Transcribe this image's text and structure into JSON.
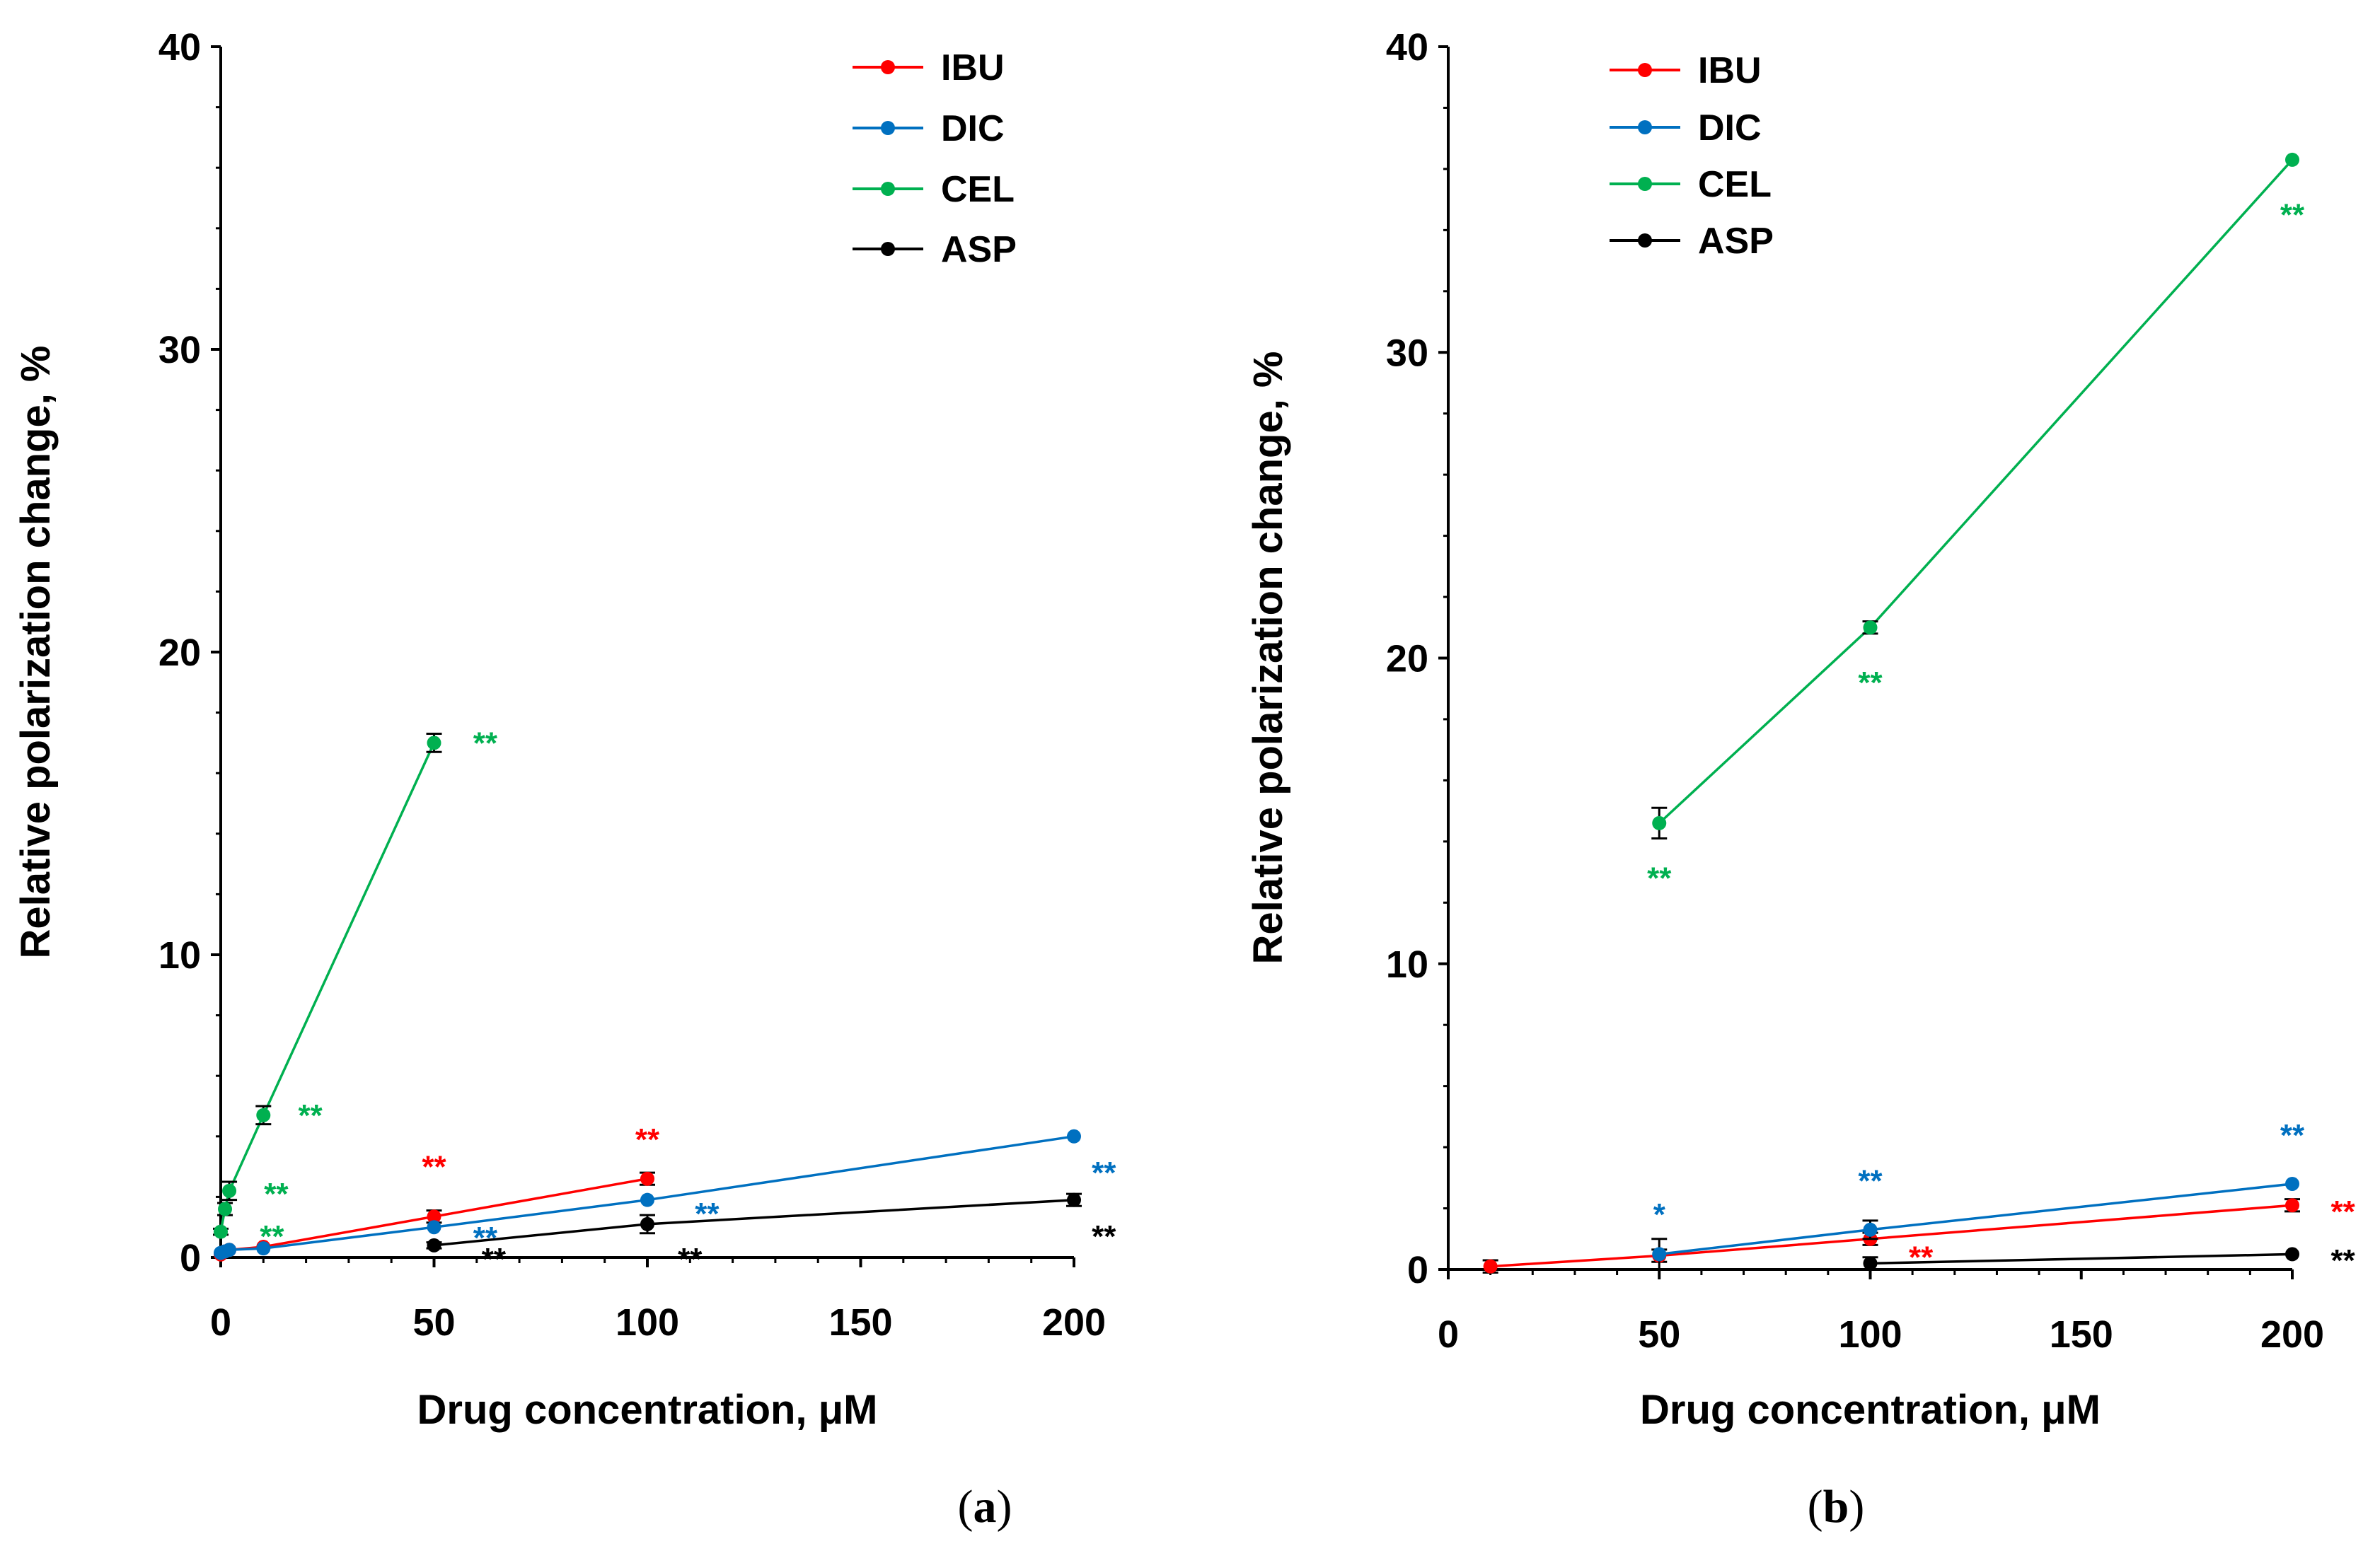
{
  "figure": {
    "panel_labels": [
      "a",
      "b"
    ]
  },
  "series_colors": {
    "IBU": "#ff0000",
    "DIC": "#0070c0",
    "CEL": "#00b050",
    "ASP": "#000000"
  },
  "chart_data": [
    {
      "type": "line",
      "panel": "a",
      "xlabel": "Drug concentration, μM",
      "ylabel": "Relative polarization  change, %",
      "xlim": [
        0,
        200
      ],
      "ylim": [
        0,
        40
      ],
      "xticks": [
        0,
        50,
        100,
        150,
        200
      ],
      "yticks": [
        0,
        10,
        20,
        30,
        40
      ],
      "legend": [
        "IBU",
        "DIC",
        "CEL",
        "ASP"
      ],
      "series": [
        {
          "name": "IBU",
          "color": "#ff0000",
          "x": [
            0,
            1,
            2,
            10,
            50,
            100
          ],
          "y": [
            0.1,
            0.2,
            0.25,
            0.35,
            1.35,
            2.6
          ],
          "err": [
            0,
            0,
            0,
            0,
            0.2,
            0.2
          ]
        },
        {
          "name": "DIC",
          "color": "#0070c0",
          "x": [
            0,
            1,
            2,
            10,
            50,
            100,
            200
          ],
          "y": [
            0.15,
            0.2,
            0.25,
            0.3,
            1.0,
            1.9,
            4.0
          ],
          "err": [
            0,
            0,
            0,
            0,
            0,
            0,
            0
          ]
        },
        {
          "name": "CEL",
          "color": "#00b050",
          "x": [
            0,
            1,
            2,
            10,
            50
          ],
          "y": [
            0.85,
            1.6,
            2.2,
            4.7,
            17.0
          ],
          "err": [
            0.1,
            0.2,
            0.3,
            0.3,
            0.3
          ]
        },
        {
          "name": "ASP",
          "color": "#000000",
          "x": [
            50,
            100,
            200
          ],
          "y": [
            0.4,
            1.1,
            1.9
          ],
          "err": [
            0.1,
            0.3,
            0.2
          ]
        }
      ],
      "annotations": [
        {
          "text": "**",
          "series": "CEL",
          "x": 62,
          "y": 17.0
        },
        {
          "text": "**",
          "series": "CEL",
          "x": 21,
          "y": 4.7
        },
        {
          "text": "**",
          "series": "CEL",
          "x": 13,
          "y": 2.1
        },
        {
          "text": "**",
          "series": "CEL",
          "x": 12,
          "y": 0.7
        },
        {
          "text": "**",
          "series": "IBU",
          "x": 50,
          "y": 3.0
        },
        {
          "text": "**",
          "series": "IBU",
          "x": 100,
          "y": 3.9
        },
        {
          "text": "**",
          "series": "DIC",
          "x": 62,
          "y": 0.65
        },
        {
          "text": "**",
          "series": "DIC",
          "x": 114,
          "y": 1.45
        },
        {
          "text": "**",
          "series": "DIC",
          "x": 207,
          "y": 2.8
        },
        {
          "text": "**",
          "series": "ASP",
          "x": 64,
          "y": -0.05
        },
        {
          "text": "**",
          "series": "ASP",
          "x": 110,
          "y": -0.05
        },
        {
          "text": "**",
          "series": "ASP",
          "x": 207,
          "y": 0.7
        }
      ]
    },
    {
      "type": "line",
      "panel": "b",
      "xlabel": "Drug concentration, μM",
      "ylabel": "Relative polarization  change, %",
      "xlim": [
        0,
        200
      ],
      "ylim": [
        0,
        40
      ],
      "xticks": [
        0,
        50,
        100,
        150,
        200
      ],
      "yticks": [
        0,
        10,
        20,
        30,
        40
      ],
      "legend": [
        "IBU",
        "DIC",
        "CEL",
        "ASP"
      ],
      "series": [
        {
          "name": "IBU",
          "color": "#ff0000",
          "x": [
            10,
            50,
            100,
            200
          ],
          "y": [
            0.1,
            0.45,
            1.0,
            2.1
          ],
          "err": [
            0.2,
            0.2,
            0.2,
            0.2
          ]
        },
        {
          "name": "DIC",
          "color": "#0070c0",
          "x": [
            50,
            100,
            200
          ],
          "y": [
            0.5,
            1.3,
            2.8
          ],
          "err": [
            0.5,
            0.3,
            0
          ]
        },
        {
          "name": "CEL",
          "color": "#00b050",
          "x": [
            50,
            100,
            200
          ],
          "y": [
            14.6,
            21.0,
            36.3
          ],
          "err": [
            0.5,
            0.2,
            0
          ]
        },
        {
          "name": "ASP",
          "color": "#000000",
          "x": [
            100,
            200
          ],
          "y": [
            0.2,
            0.5
          ],
          "err": [
            0.2,
            0
          ]
        }
      ],
      "annotations": [
        {
          "text": "**",
          "series": "CEL",
          "x": 200,
          "y": 34.5
        },
        {
          "text": "**",
          "series": "CEL",
          "x": 100,
          "y": 19.2
        },
        {
          "text": "**",
          "series": "CEL",
          "x": 50,
          "y": 12.8
        },
        {
          "text": "*",
          "series": "DIC",
          "x": 50,
          "y": 1.8
        },
        {
          "text": "**",
          "series": "DIC",
          "x": 100,
          "y": 2.9
        },
        {
          "text": "**",
          "series": "DIC",
          "x": 200,
          "y": 4.4
        },
        {
          "text": "**",
          "series": "IBU",
          "x": 112,
          "y": 0.4
        },
        {
          "text": "**",
          "series": "IBU",
          "x": 212,
          "y": 1.9
        },
        {
          "text": "**",
          "series": "ASP",
          "x": 212,
          "y": 0.3
        }
      ]
    }
  ]
}
